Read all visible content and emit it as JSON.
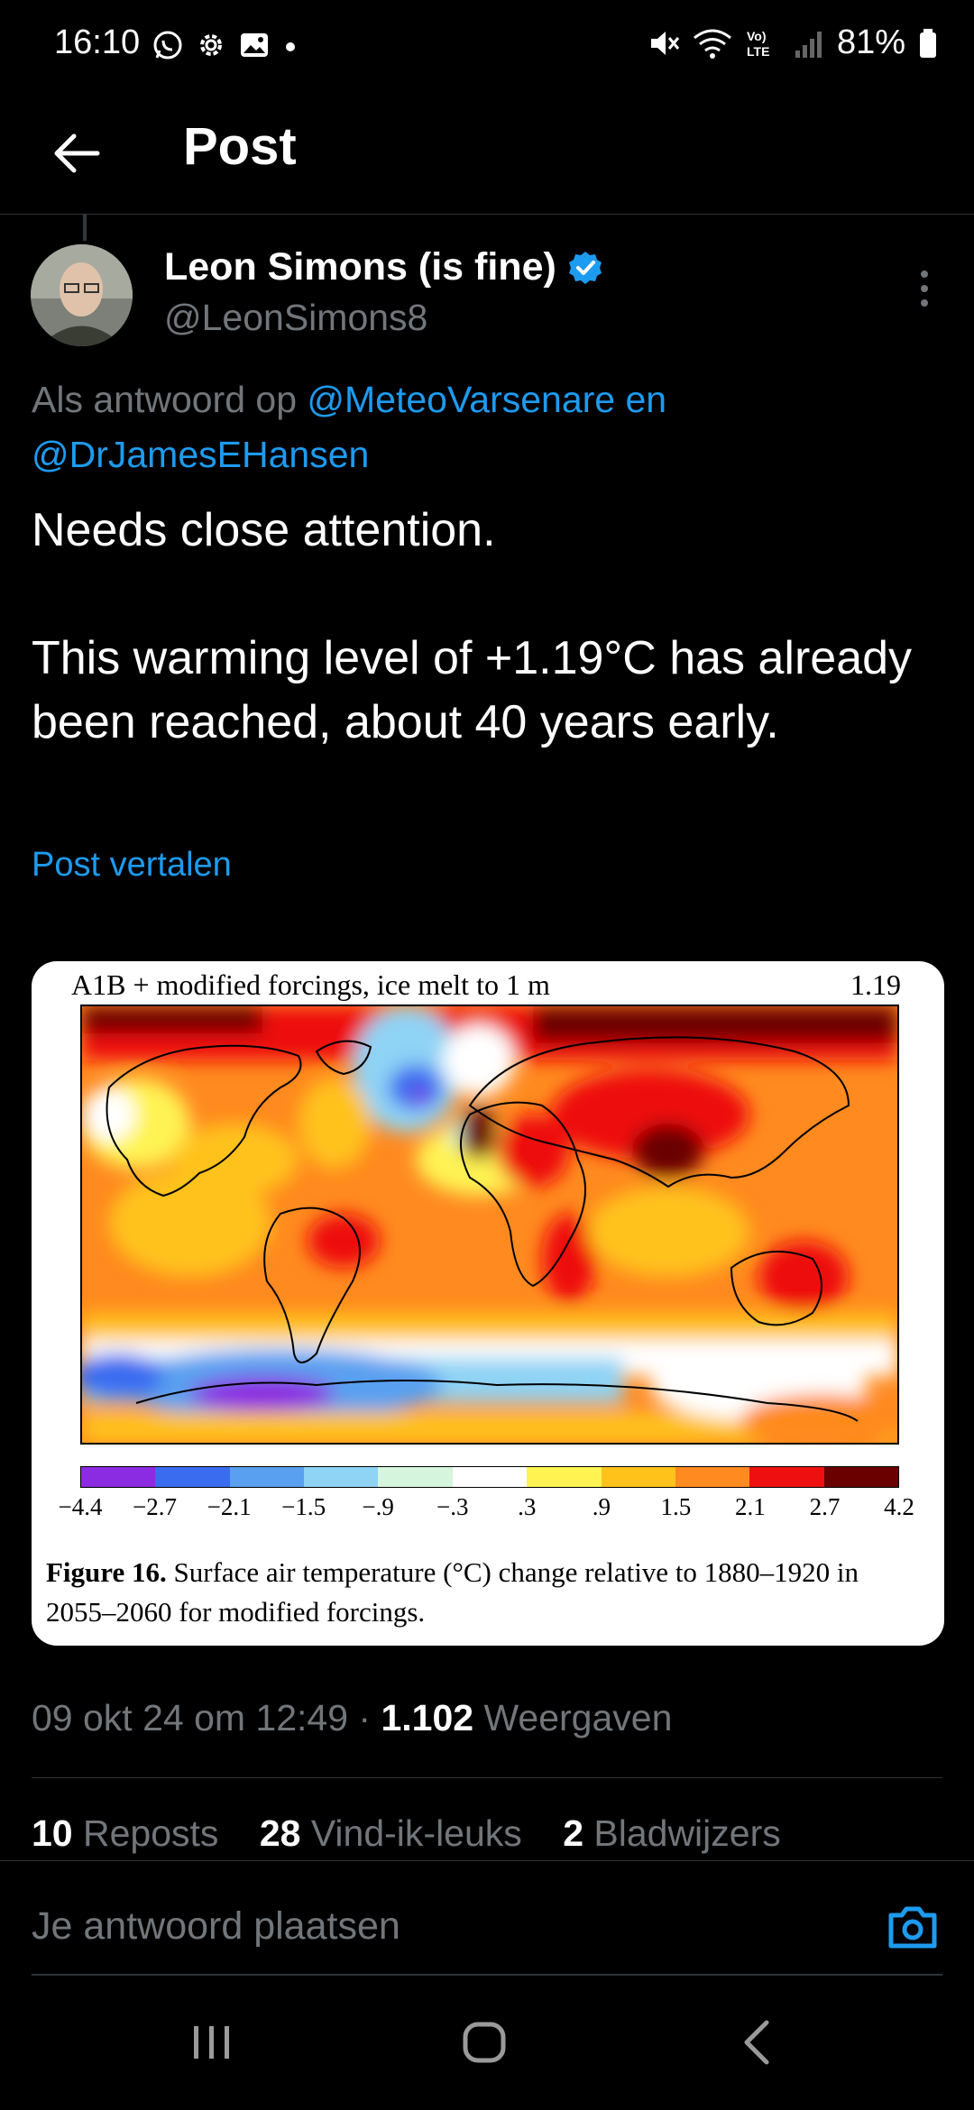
{
  "status_bar": {
    "time": "16:10",
    "battery": "81%",
    "left_icons": [
      "whatsapp-icon",
      "settings-icon",
      "gallery-icon",
      "dot-icon"
    ],
    "right_icons": [
      "mute-icon",
      "wifi-icon",
      "volte-icon",
      "signal-icon",
      "battery-icon"
    ]
  },
  "header": {
    "title": "Post"
  },
  "author": {
    "name": "Leon Simons (is fine)",
    "handle": "@LeonSimons8",
    "verified": true
  },
  "reply_context": {
    "prefix": "Als antwoord op ",
    "mention1": "@MeteoVarsenare",
    "joiner": " en",
    "mention2": "@DrJamesEHansen"
  },
  "post": {
    "line1": "Needs close attention.",
    "line2": "This warming level of +1.19°C has already been reached, about 40 years early.",
    "translate": "Post vertalen"
  },
  "figure": {
    "title": "A1B + modified forcings, ice melt to 1 m",
    "value": "1.19",
    "colorbar_colors": [
      "#8b2be2",
      "#3a6cf0",
      "#5aa0f0",
      "#8fd3f5",
      "#d5f5dc",
      "#ffffff",
      "#fff352",
      "#ffc21a",
      "#ff8a1f",
      "#ee1010",
      "#6b0000"
    ],
    "ticks": [
      "−4.4",
      "−2.7",
      "−2.1",
      "−1.5",
      "−.9",
      "−.3",
      ".3",
      ".9",
      "1.5",
      "2.1",
      "2.7",
      "4.2"
    ],
    "caption_bold": "Figure 16.",
    "caption_rest": " Surface air temperature (°C) change relative to 1880–1920 in 2055–2060 for modified forcings."
  },
  "meta": {
    "date": "09 okt 24 om 12:49 · ",
    "views_count": "1.102",
    "views_label": " Weergaven"
  },
  "stats": {
    "reposts_count": "10",
    "reposts_label": " Reposts",
    "likes_count": "28",
    "likes_label": " Vind-ik-leuks",
    "bookmarks_count": "2",
    "bookmarks_label": " Bladwijzers"
  },
  "reply_bar": {
    "placeholder": "Je antwoord plaatsen"
  },
  "nav": [
    "recents-icon",
    "home-icon",
    "back-icon"
  ]
}
